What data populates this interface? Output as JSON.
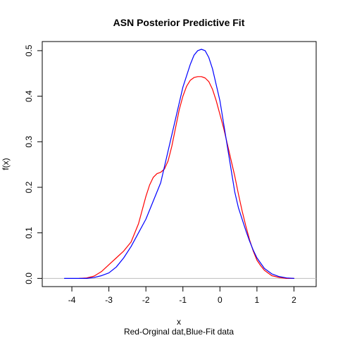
{
  "chart_data": {
    "type": "line",
    "title": "ASN Posterior Predictive Fit",
    "xlabel": "x",
    "ylabel": "f(x)",
    "subtitle": "Red-Orginal dat,Blue-Fit data",
    "xlim": [
      -4.8,
      2.6
    ],
    "ylim": [
      -0.018,
      0.52
    ],
    "xticks": [
      -4,
      -3,
      -2,
      -1,
      0,
      1,
      2
    ],
    "yticks": [
      0.0,
      0.1,
      0.2,
      0.3,
      0.4,
      0.5
    ],
    "xtick_labels": [
      "-4",
      "-3",
      "-2",
      "-1",
      "0",
      "1",
      "2"
    ],
    "ytick_labels": [
      "0.0",
      "0.1",
      "0.2",
      "0.3",
      "0.4",
      "0.5"
    ],
    "grid": false,
    "baseline": {
      "y": 0,
      "color": "#bebebe"
    },
    "series": [
      {
        "color": "#ff0000",
        "x": [
          -3.8,
          -3.6,
          -3.4,
          -3.2,
          -3.0,
          -2.8,
          -2.6,
          -2.4,
          -2.2,
          -2.0,
          -1.9,
          -1.8,
          -1.7,
          -1.6,
          -1.5,
          -1.4,
          -1.3,
          -1.2,
          -1.1,
          -1.0,
          -0.9,
          -0.8,
          -0.7,
          -0.6,
          -0.5,
          -0.4,
          -0.3,
          -0.2,
          -0.1,
          0.0,
          0.1,
          0.2,
          0.3,
          0.4,
          0.5,
          0.6,
          0.7,
          0.8,
          0.9,
          1.0,
          1.1,
          1.2,
          1.4,
          1.6,
          1.8,
          2.0
        ],
        "y": [
          0.0,
          0.001,
          0.005,
          0.015,
          0.03,
          0.045,
          0.06,
          0.08,
          0.12,
          0.18,
          0.205,
          0.222,
          0.23,
          0.233,
          0.24,
          0.258,
          0.29,
          0.33,
          0.37,
          0.4,
          0.422,
          0.435,
          0.441,
          0.443,
          0.443,
          0.44,
          0.432,
          0.415,
          0.39,
          0.36,
          0.33,
          0.295,
          0.26,
          0.225,
          0.185,
          0.148,
          0.115,
          0.085,
          0.06,
          0.04,
          0.028,
          0.018,
          0.006,
          0.002,
          0.0,
          0.0
        ]
      },
      {
        "color": "#0000ff",
        "x": [
          -4.2,
          -4.0,
          -3.8,
          -3.6,
          -3.4,
          -3.2,
          -3.0,
          -2.8,
          -2.6,
          -2.4,
          -2.2,
          -2.0,
          -1.8,
          -1.6,
          -1.4,
          -1.2,
          -1.0,
          -0.9,
          -0.8,
          -0.7,
          -0.6,
          -0.5,
          -0.4,
          -0.3,
          -0.2,
          -0.1,
          0.0,
          0.1,
          0.2,
          0.3,
          0.4,
          0.5,
          0.6,
          0.7,
          0.8,
          0.9,
          1.0,
          1.2,
          1.4,
          1.6,
          1.8,
          2.0
        ],
        "y": [
          0.0,
          0.0,
          0.0,
          0.0,
          0.002,
          0.006,
          0.012,
          0.025,
          0.045,
          0.07,
          0.1,
          0.13,
          0.17,
          0.21,
          0.28,
          0.35,
          0.42,
          0.445,
          0.47,
          0.49,
          0.5,
          0.503,
          0.5,
          0.485,
          0.46,
          0.425,
          0.39,
          0.34,
          0.29,
          0.24,
          0.19,
          0.155,
          0.13,
          0.105,
          0.082,
          0.062,
          0.045,
          0.022,
          0.01,
          0.004,
          0.001,
          0.0
        ]
      }
    ]
  }
}
